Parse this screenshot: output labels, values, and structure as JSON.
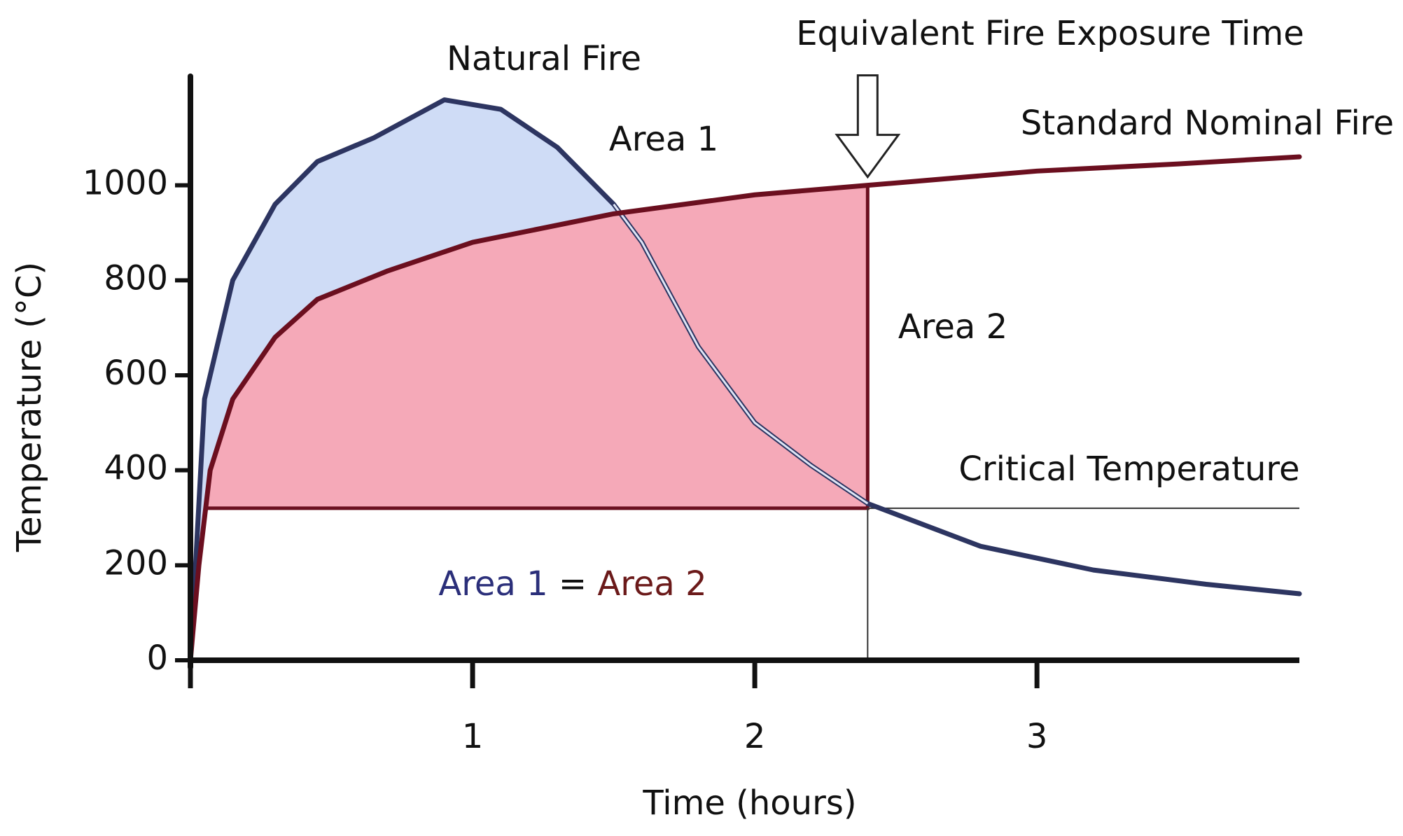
{
  "chart_data": {
    "type": "line",
    "title": "Equivalent Fire Exposure Time",
    "x_label": "Time (hours)",
    "y_label": "Temperature (°C)",
    "xlim": [
      0,
      3.93
    ],
    "ylim": [
      0,
      1200
    ],
    "xticks": [
      1,
      2,
      3
    ],
    "yticks": [
      0,
      200,
      400,
      600,
      800,
      1000
    ],
    "critical_temperature": 320,
    "equivalent_time": 2.4,
    "series": [
      {
        "name": "Natural Fire",
        "color": "#2d3561",
        "fill": "#cfdcf6",
        "x": [
          0,
          0.05,
          0.15,
          0.3,
          0.45,
          0.65,
          0.9,
          1.1,
          1.3,
          1.5,
          1.6,
          1.8,
          2.0,
          2.2,
          2.4,
          2.8,
          3.2,
          3.6,
          3.93
        ],
        "values": [
          0,
          550,
          800,
          960,
          1050,
          1100,
          1180,
          1160,
          1080,
          960,
          880,
          660,
          500,
          410,
          330,
          240,
          190,
          160,
          140
        ]
      },
      {
        "name": "Standard Nominal Fire",
        "color": "#6b0f1f",
        "fill": "#f5a9b8",
        "x": [
          0,
          0.03,
          0.07,
          0.15,
          0.3,
          0.45,
          0.7,
          1.0,
          1.5,
          2.0,
          2.4,
          3.0,
          3.5,
          3.93
        ],
        "values": [
          0,
          200,
          400,
          550,
          680,
          760,
          820,
          880,
          940,
          980,
          1000,
          1030,
          1045,
          1060
        ]
      }
    ],
    "annotations": [
      "Area 1",
      "Area 2",
      "Critical Temperature"
    ],
    "equation": [
      "Area 1",
      "=",
      "Area 2"
    ]
  }
}
